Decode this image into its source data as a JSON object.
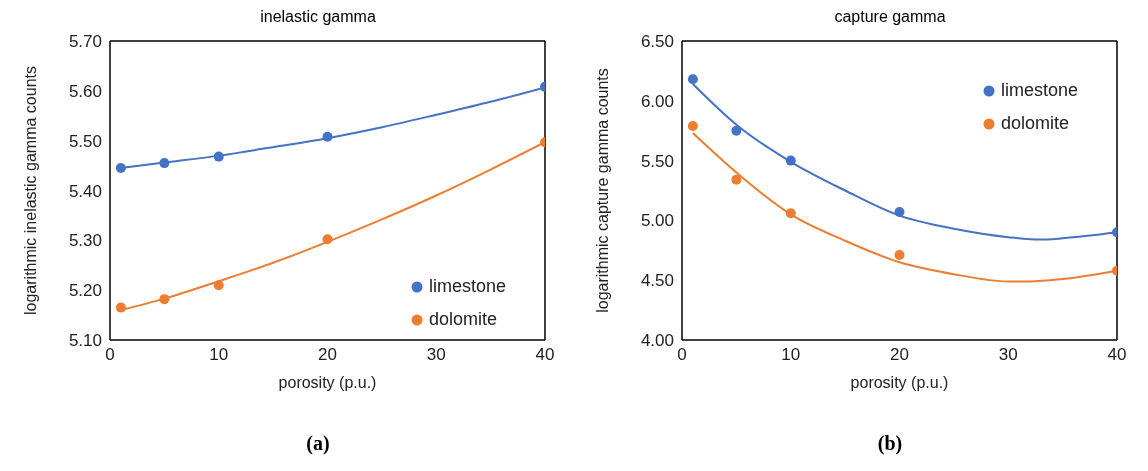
{
  "chart_data": [
    {
      "type": "scatter",
      "title": "inelastic gamma",
      "xlabel": "porosity (p.u.)",
      "ylabel": "logarithmic inelastic  gamma counts",
      "xlim": [
        0,
        40
      ],
      "xticks": [
        0,
        10,
        20,
        30,
        40
      ],
      "ylim": [
        5.1,
        5.7
      ],
      "yticks": [
        {
          "value": 5.1,
          "label": "5.10"
        },
        {
          "value": 5.2,
          "label": "5.20"
        },
        {
          "value": 5.3,
          "label": "5.30"
        },
        {
          "value": 5.4,
          "label": "5.40"
        },
        {
          "value": 5.5,
          "label": "5.50"
        },
        {
          "value": 5.6,
          "label": "5.60"
        },
        {
          "value": 5.7,
          "label": "5.70"
        }
      ],
      "legend": "bottom right",
      "line_style": "solid",
      "annotations": [
        "(a)"
      ],
      "series": [
        {
          "type": "line",
          "marker": "none",
          "color": "#4472c4",
          "x": [
            1,
            5,
            10,
            15,
            20,
            25,
            30,
            35,
            40
          ],
          "values": [
            5.445,
            5.456,
            5.47,
            5.487,
            5.505,
            5.527,
            5.552,
            5.578,
            5.607
          ]
        },
        {
          "type": "line",
          "marker": "none",
          "color": "#ed7d31",
          "x": [
            1,
            5,
            10,
            15,
            20,
            25,
            30,
            35,
            40
          ],
          "values": [
            5.16,
            5.183,
            5.218,
            5.255,
            5.297,
            5.342,
            5.39,
            5.442,
            5.497
          ]
        },
        {
          "name": "limestone",
          "marker": "circle",
          "color": "#4472c4",
          "x": [
            1,
            5,
            10,
            20,
            40
          ],
          "values": [
            5.445,
            5.455,
            5.468,
            5.508,
            5.608
          ]
        },
        {
          "name": "dolomite",
          "marker": "circle",
          "color": "#ed7d31",
          "x": [
            1,
            5,
            10,
            20,
            40
          ],
          "values": [
            5.165,
            5.182,
            5.21,
            5.302,
            5.497
          ]
        }
      ]
    },
    {
      "type": "scatter",
      "title": "capture gamma",
      "xlabel": "porosity (p.u.)",
      "ylabel": "logarithmic capture  gamma counts",
      "xlim": [
        0,
        40
      ],
      "xticks": [
        0,
        10,
        20,
        30,
        40
      ],
      "ylim": [
        4.0,
        6.5
      ],
      "yticks": [
        {
          "value": 4.0,
          "label": "4.00"
        },
        {
          "value": 4.5,
          "label": "4.50"
        },
        {
          "value": 5.0,
          "label": "5.00"
        },
        {
          "value": 5.5,
          "label": "5.50"
        },
        {
          "value": 6.0,
          "label": "6.00"
        },
        {
          "value": 6.5,
          "label": "6.50"
        }
      ],
      "legend": "top right",
      "line_style": "solid",
      "annotations": [
        "(b)"
      ],
      "series": [
        {
          "type": "line",
          "marker": "none",
          "color": "#4472c4",
          "x": [
            1,
            5,
            10,
            15,
            20,
            25,
            30,
            33,
            35,
            40
          ],
          "values": [
            6.14,
            5.8,
            5.49,
            5.25,
            5.04,
            4.93,
            4.86,
            4.84,
            4.85,
            4.9
          ]
        },
        {
          "type": "line",
          "marker": "none",
          "color": "#ed7d31",
          "x": [
            1,
            5,
            10,
            15,
            20,
            25,
            30,
            32,
            35,
            40
          ],
          "values": [
            5.73,
            5.4,
            5.05,
            4.83,
            4.65,
            4.55,
            4.49,
            4.49,
            4.51,
            4.58
          ]
        },
        {
          "name": "limestone",
          "marker": "circle",
          "color": "#4472c4",
          "x": [
            1,
            5,
            10,
            20,
            40
          ],
          "values": [
            6.18,
            5.75,
            5.5,
            5.07,
            4.9
          ]
        },
        {
          "name": "dolomite",
          "marker": "circle",
          "color": "#ed7d31",
          "x": [
            1,
            5,
            10,
            20,
            40
          ],
          "values": [
            5.79,
            5.34,
            5.06,
            4.71,
            4.58
          ]
        }
      ]
    }
  ]
}
